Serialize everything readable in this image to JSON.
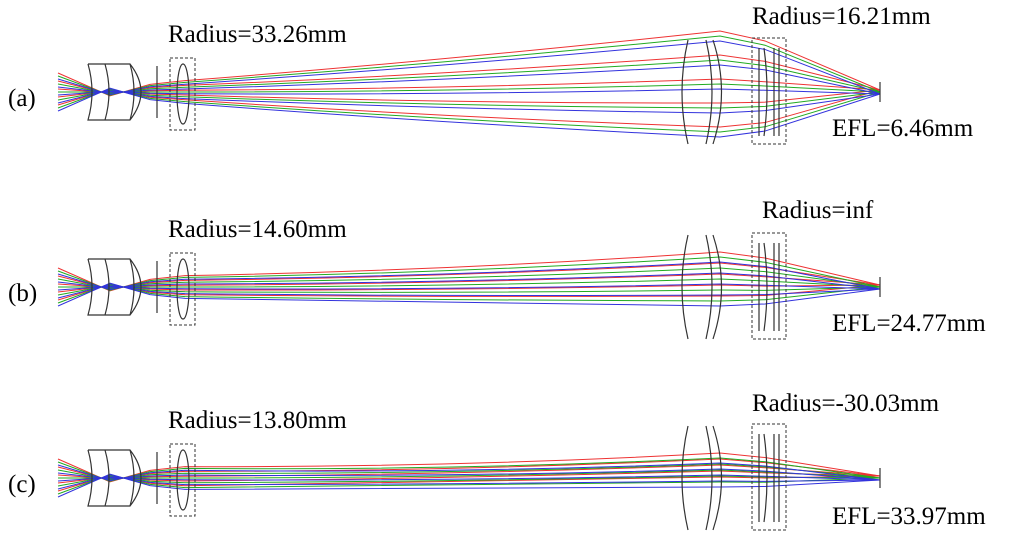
{
  "panels": [
    {
      "label": "(a)",
      "left_radius": "Radius=33.26mm",
      "right_radius": "Radius=16.21mm",
      "efl": "EFL=6.46mm"
    },
    {
      "label": "(b)",
      "left_radius": "Radius=14.60mm",
      "right_radius": "Radius=inf",
      "efl": "EFL=24.77mm"
    },
    {
      "label": "(c)",
      "left_radius": "Radius=13.80mm",
      "right_radius": "Radius=-30.03mm",
      "efl": "EFL=33.97mm"
    }
  ]
}
